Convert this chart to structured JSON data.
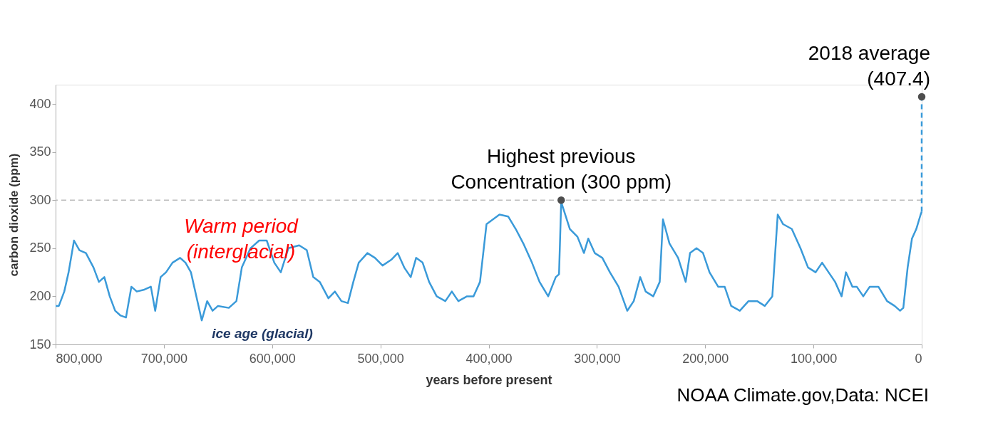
{
  "chart_data": {
    "type": "line",
    "xlabel": "years before present",
    "ylabel": "carbon dioxide (ppm)",
    "xlim": [
      800000,
      0
    ],
    "xticks": [
      {
        "value": 800000,
        "label": "800,000"
      },
      {
        "value": 700000,
        "label": "700,000"
      },
      {
        "value": 600000,
        "label": "600,000"
      },
      {
        "value": 500000,
        "label": "500,000"
      },
      {
        "value": 400000,
        "label": "400,000"
      },
      {
        "value": 300000,
        "label": "300,000"
      },
      {
        "value": 200000,
        "label": "200,000"
      },
      {
        "value": 100000,
        "label": "100,000"
      },
      0
    ],
    "ylim": [
      150,
      420
    ],
    "yticks": [
      150,
      200,
      250,
      300,
      350,
      400
    ],
    "grid": false,
    "marker": "none",
    "series": [
      {
        "color": "#3a9ad9",
        "line_style": "solid",
        "x": [
          800000,
          797000,
          792000,
          788000,
          783000,
          778000,
          772000,
          765000,
          760000,
          755000,
          750000,
          745000,
          740000,
          735000,
          730000,
          725000,
          718000,
          712000,
          708000,
          703000,
          698000,
          692000,
          685000,
          680000,
          675000,
          670000,
          665000,
          660000,
          655000,
          650000,
          640000,
          633000,
          628000,
          620000,
          612000,
          605000,
          598000,
          592000,
          585000,
          575000,
          568000,
          562000,
          556000,
          548000,
          542000,
          536000,
          530000,
          525000,
          520000,
          512000,
          505000,
          498000,
          490000,
          484000,
          478000,
          472000,
          467000,
          461000,
          455000,
          448000,
          440000,
          434000,
          428000,
          420000,
          414000,
          408000,
          402000,
          396000,
          390000,
          382000,
          375000,
          368000,
          360000,
          353000,
          345000,
          338000,
          335000,
          333000,
          325000,
          318000,
          312000,
          308000,
          302000,
          295000,
          288000,
          280000,
          272000,
          266000,
          260000,
          255000,
          248000,
          242000,
          239000,
          233000,
          225000,
          218000,
          214000,
          208000,
          202000,
          196000,
          188000,
          182000,
          176000,
          168000,
          160000,
          152000,
          145000,
          138000,
          133000,
          128000,
          120000,
          112000,
          105000,
          98000,
          92000,
          86000,
          80000,
          74000,
          70000,
          64000,
          60000,
          54000,
          48000,
          40000,
          32000,
          25000,
          20000,
          17000,
          13000,
          9000,
          5000,
          1000,
          0
        ],
        "values": [
          190,
          190,
          205,
          225,
          258,
          248,
          245,
          230,
          215,
          220,
          200,
          185,
          180,
          178,
          210,
          205,
          207,
          210,
          185,
          220,
          225,
          235,
          240,
          235,
          225,
          200,
          175,
          195,
          185,
          190,
          188,
          195,
          230,
          250,
          258,
          258,
          235,
          225,
          250,
          253,
          248,
          220,
          215,
          198,
          205,
          195,
          193,
          215,
          235,
          245,
          240,
          232,
          238,
          245,
          230,
          220,
          240,
          235,
          215,
          200,
          195,
          205,
          195,
          200,
          200,
          215,
          275,
          280,
          285,
          283,
          270,
          255,
          235,
          215,
          200,
          220,
          223,
          298,
          270,
          262,
          245,
          260,
          245,
          240,
          225,
          210,
          185,
          195,
          220,
          205,
          200,
          215,
          280,
          255,
          240,
          215,
          245,
          250,
          245,
          225,
          210,
          210,
          190,
          185,
          195,
          195,
          190,
          200,
          285,
          275,
          270,
          250,
          230,
          225,
          235,
          225,
          215,
          200,
          225,
          210,
          210,
          200,
          210,
          210,
          195,
          190,
          185,
          188,
          230,
          260,
          270,
          285,
          288
        ]
      },
      {
        "color": "#3a9ad9",
        "line_style": "dashed",
        "x": [
          0,
          0
        ],
        "values": [
          288,
          407.4
        ]
      },
      {
        "type": "scatter",
        "color": "#4d4d4d",
        "marker": "circle",
        "x": [
          333000,
          0
        ],
        "values": [
          300,
          407.4
        ]
      }
    ],
    "ref_lines": [
      {
        "axis": "y",
        "value": 300,
        "color": "#bbbbbb",
        "line_style": "dashed"
      }
    ],
    "annotations": [
      {
        "text": "Highest previous\nConcentration (300 ppm)",
        "x": 333000,
        "y": 300
      },
      {
        "text": "2018 average\n(407.4)",
        "x": 0,
        "y": 407.4
      },
      "Warm period\n(interglacial)",
      "ice age (glacial)",
      "NOAA Climate.gov,Data: NCEI"
    ]
  }
}
